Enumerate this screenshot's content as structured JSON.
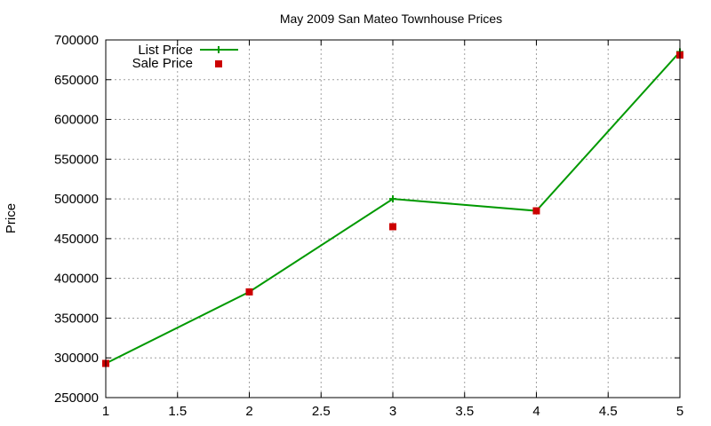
{
  "chart_data": {
    "type": "line",
    "title": "May 2009 San Mateo Townhouse Prices",
    "xlabel": "",
    "ylabel": "Price",
    "xlim": [
      1,
      5
    ],
    "ylim": [
      250000,
      700000
    ],
    "x_ticks": [
      "1",
      "1.5",
      "2",
      "2.5",
      "3",
      "3.5",
      "4",
      "4.5",
      "5"
    ],
    "y_ticks": [
      "250000",
      "300000",
      "350000",
      "400000",
      "450000",
      "500000",
      "550000",
      "600000",
      "650000",
      "700000"
    ],
    "grid": true,
    "legend_position": "top-left",
    "series": [
      {
        "name": "List Price",
        "style": "line-with-cross-markers",
        "color": "#009900",
        "x": [
          1,
          2,
          3,
          4,
          5
        ],
        "values": [
          293000,
          383000,
          500000,
          485000,
          685000
        ]
      },
      {
        "name": "Sale Price",
        "style": "square-markers",
        "color": "#cc0000",
        "x": [
          1,
          2,
          3,
          4,
          5
        ],
        "values": [
          293000,
          383000,
          465000,
          485000,
          681000
        ]
      }
    ]
  }
}
